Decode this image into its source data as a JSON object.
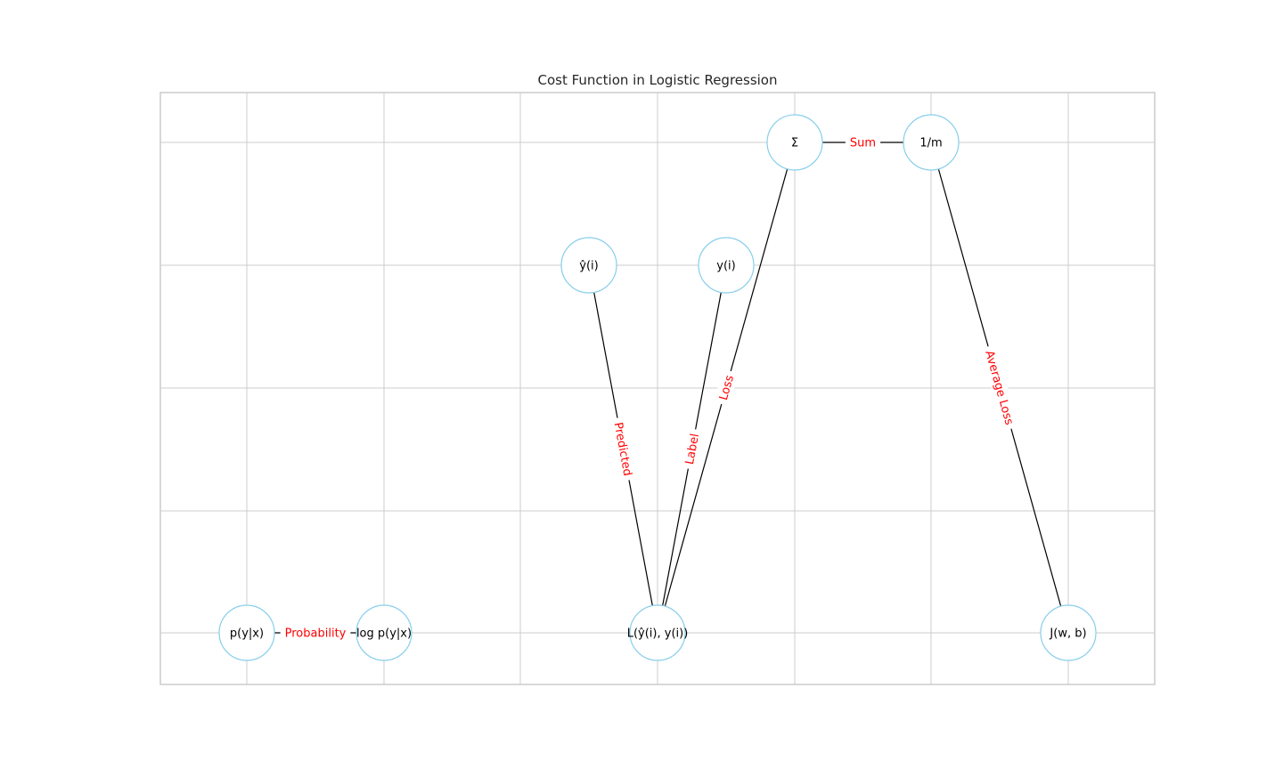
{
  "diagram": {
    "title": "Cost Function in Logistic Regression",
    "nodes": [
      {
        "id": "p",
        "label": "p(y|x)"
      },
      {
        "id": "logp",
        "label": "log p(y|x)"
      },
      {
        "id": "L",
        "label": "L(ŷ(i), y(i))"
      },
      {
        "id": "J",
        "label": "J(w, b)"
      },
      {
        "id": "yhat",
        "label": "ŷ(i)"
      },
      {
        "id": "y",
        "label": "y(i)"
      },
      {
        "id": "sum",
        "label": "Σ"
      },
      {
        "id": "invm",
        "label": "1/m"
      }
    ],
    "edges": [
      {
        "from": "p",
        "to": "logp",
        "label": "Probability"
      },
      {
        "from": "yhat",
        "to": "L",
        "label": "Predicted"
      },
      {
        "from": "y",
        "to": "L",
        "label": "Label"
      },
      {
        "from": "L",
        "to": "sum",
        "label": "Loss"
      },
      {
        "from": "sum",
        "to": "invm",
        "label": "Sum"
      },
      {
        "from": "invm",
        "to": "J",
        "label": "Average Loss"
      }
    ],
    "colors": {
      "node_border": "#87ceeb",
      "edge": "#000000",
      "edge_label": "#ff0000",
      "grid": "#cccccc"
    }
  }
}
